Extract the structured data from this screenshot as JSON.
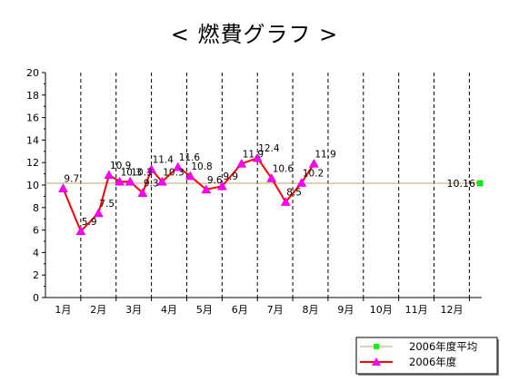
{
  "chart_data": {
    "type": "line",
    "title": "< 燃費グラフ >",
    "categories": [
      "1月",
      "2月",
      "3月",
      "4月",
      "5月",
      "6月",
      "7月",
      "8月",
      "9月",
      "10月",
      "11月",
      "12月"
    ],
    "ylim": [
      0,
      20
    ],
    "y_ticks": [
      "0",
      "2",
      "4",
      "6",
      "8",
      "10",
      "12",
      "14",
      "16",
      "18",
      "20"
    ],
    "grid": "dashed vertical month separators",
    "legend_position": "bottom-right",
    "series": [
      {
        "name": "2006年度",
        "color": "#ff0000",
        "marker_color": "#ff00ff",
        "x": [
          0.5,
          1.0,
          1.5,
          1.8,
          2.1,
          2.4,
          2.75,
          3.0,
          3.3,
          3.75,
          4.1,
          4.55,
          5.0,
          5.55,
          6.0,
          6.4,
          6.8,
          7.25,
          7.6
        ],
        "values": [
          9.7,
          5.9,
          7.5,
          10.9,
          10.3,
          10.3,
          9.3,
          11.4,
          10.3,
          11.6,
          10.8,
          9.6,
          9.9,
          11.9,
          12.4,
          10.6,
          8.5,
          10.2,
          11.9
        ],
        "labels": [
          "9.7",
          "5.9",
          "7.5",
          "10.9",
          "10.3",
          "10.3",
          "9.3",
          "11.4",
          "10.3",
          "11.6",
          "10.8",
          "9.6",
          "9.9",
          "11.9",
          "12.4",
          "10.6",
          "8.5",
          "10.2",
          "11.9"
        ]
      },
      {
        "name": "2006年度平均",
        "color": "#c0a070",
        "marker_color": "#00ff00",
        "value": 10.16,
        "label": "10.16"
      }
    ]
  }
}
